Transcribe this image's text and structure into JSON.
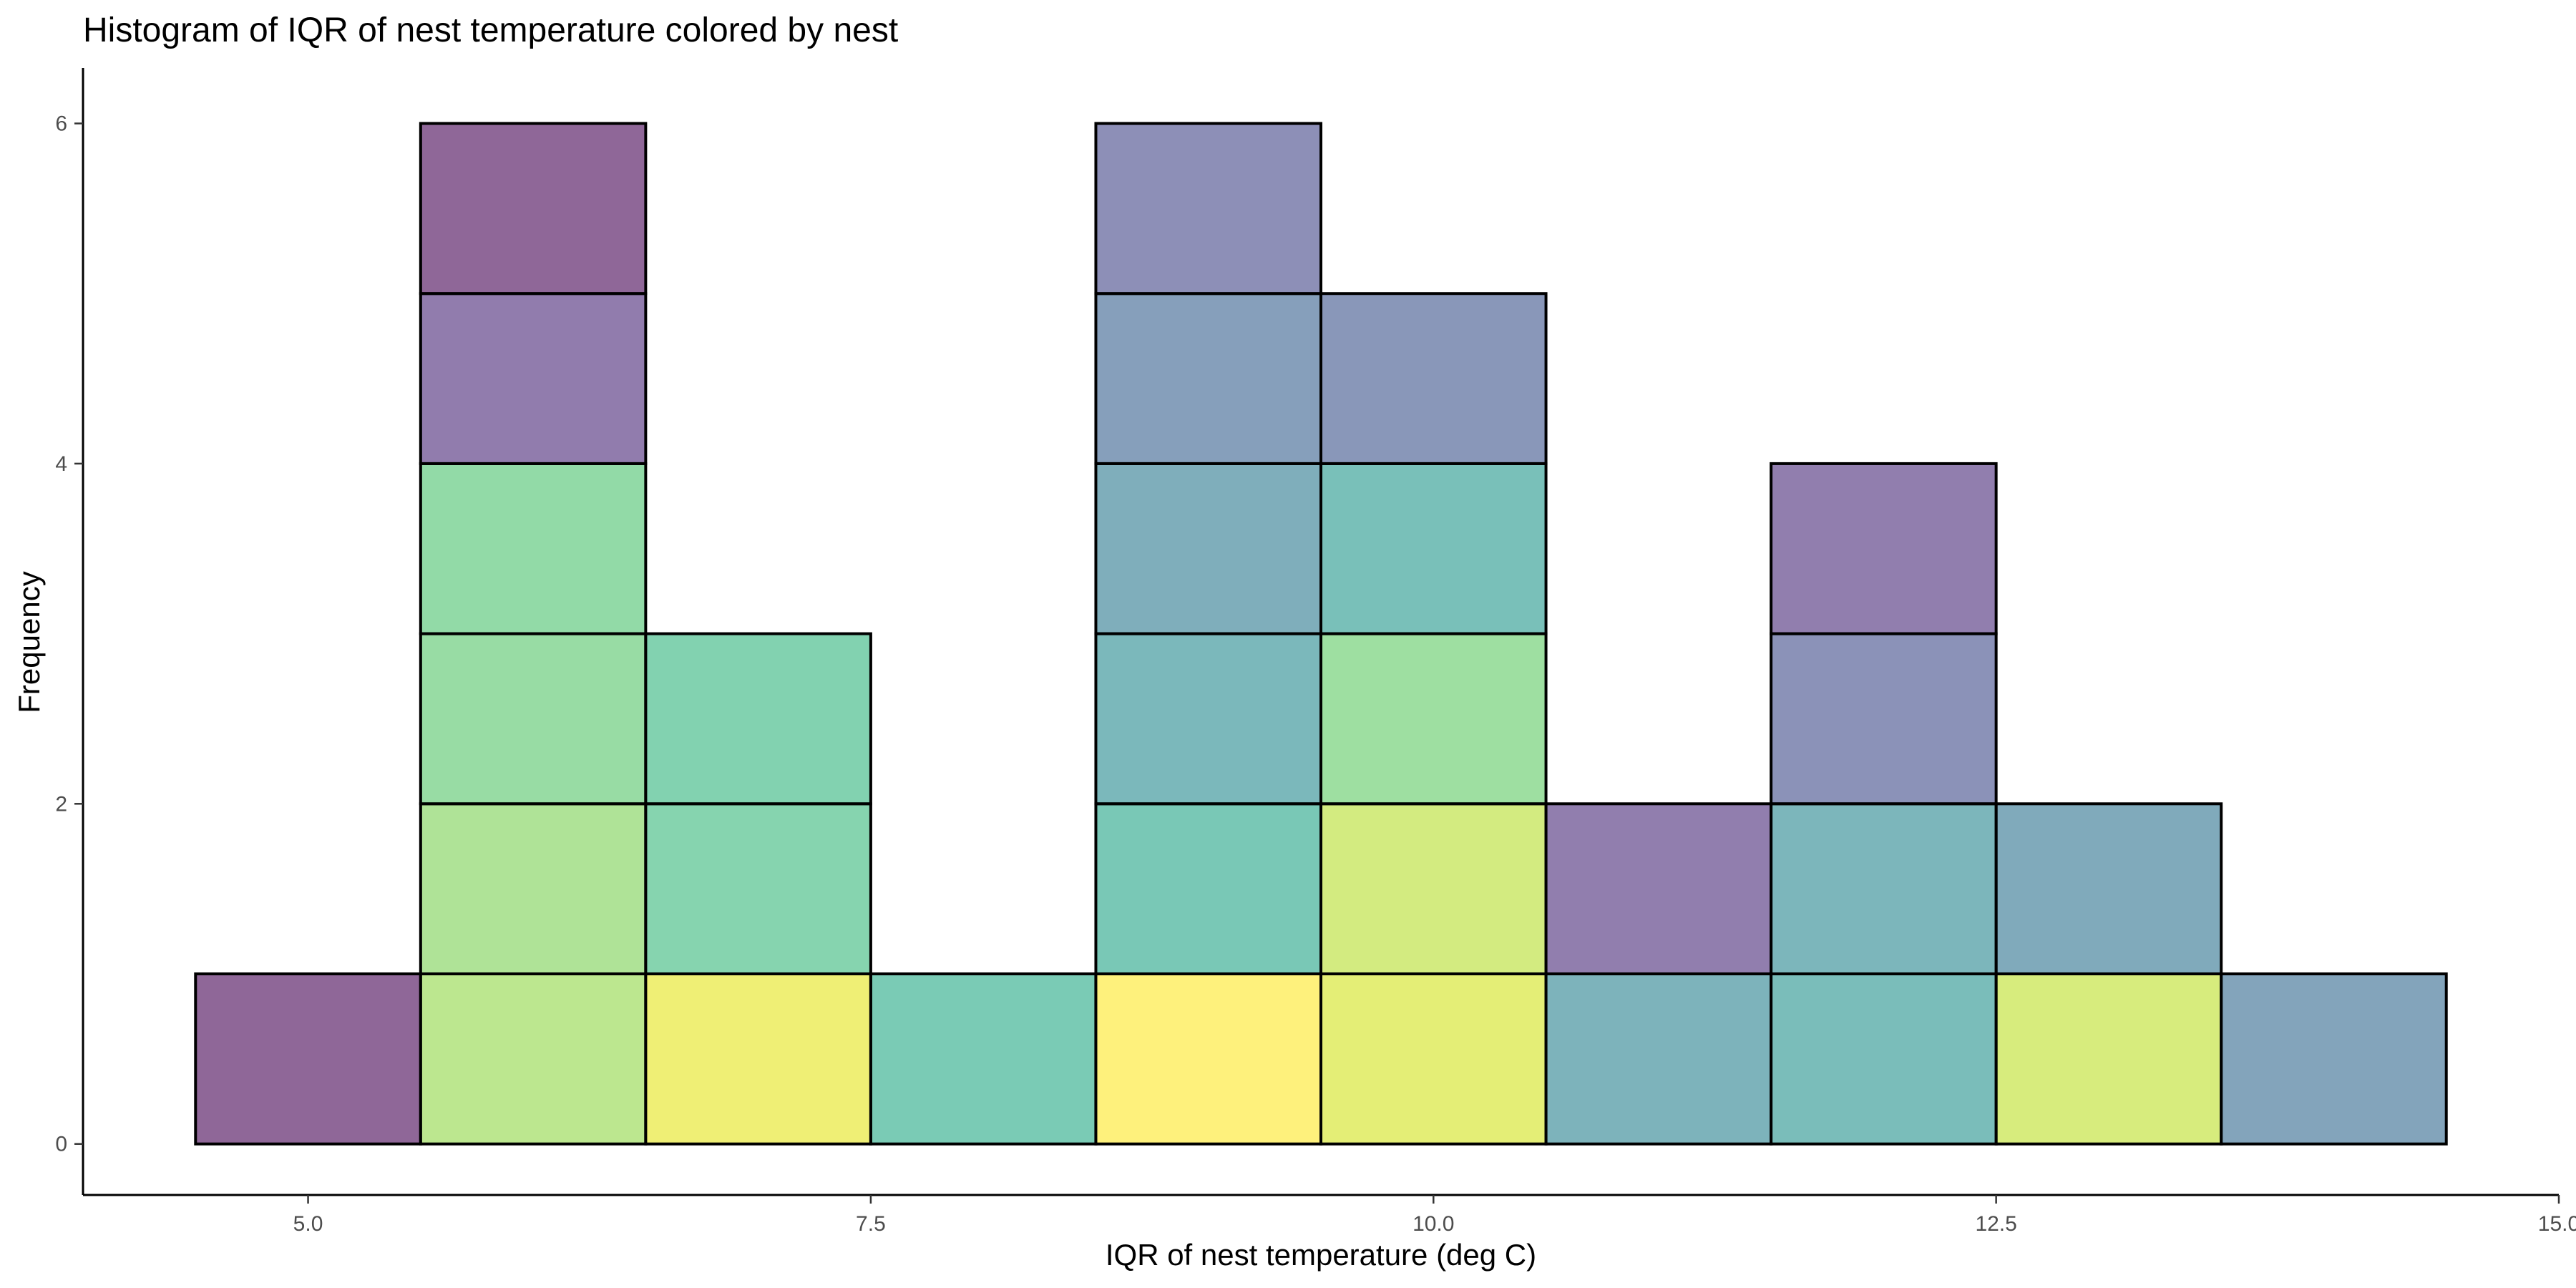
{
  "chart_data": {
    "type": "bar",
    "subtype": "stacked-histogram",
    "title": "Histogram of IQR of nest temperature colored by nest",
    "xlabel": "IQR of nest temperature (deg C)",
    "ylabel": "Frequency",
    "xlim": [
      4.0,
      15.0
    ],
    "ylim": [
      -0.3,
      6.2
    ],
    "x_ticks": [
      {
        "value": 5.0,
        "label": "5.0"
      },
      {
        "value": 7.5,
        "label": "7.5"
      },
      {
        "value": 10.0,
        "label": "10.0"
      },
      {
        "value": 12.5,
        "label": "12.5"
      },
      {
        "value": 15.0,
        "label": "15.0"
      }
    ],
    "y_ticks": [
      {
        "value": 0,
        "label": "0"
      },
      {
        "value": 2,
        "label": "2"
      },
      {
        "value": 4,
        "label": "4"
      },
      {
        "value": 6,
        "label": "6"
      }
    ],
    "grid": false,
    "legend": "none",
    "bin_width": 1.0,
    "bins": [
      {
        "x_min": 4.5,
        "x_max": 5.5,
        "segments": [
          "#440154"
        ]
      },
      {
        "x_min": 5.5,
        "x_max": 6.5,
        "segments": [
          "#8fd744",
          "#7ad151",
          "#54c568",
          "#4ac16d",
          "#482576",
          "#440154"
        ]
      },
      {
        "x_min": 6.5,
        "x_max": 7.5,
        "segments": [
          "#e5e419",
          "#35b779",
          "#2fb47c"
        ]
      },
      {
        "x_min": 7.5,
        "x_max": 8.5,
        "segments": [
          "#22a884"
        ]
      },
      {
        "x_min": 8.5,
        "x_max": 9.5,
        "segments": [
          "#fde725",
          "#20a386",
          "#23888e",
          "#2a788e",
          "#355f8d",
          "#414487"
        ]
      },
      {
        "x_min": 9.5,
        "x_max": 10.5,
        "segments": [
          "#d2e21b",
          "#b5de2b",
          "#5ec962",
          "#1f968b",
          "#3b528b"
        ]
      },
      {
        "x_min": 10.5,
        "x_max": 11.5,
        "segments": [
          "#26818e",
          "#482878"
        ]
      },
      {
        "x_min": 11.5,
        "x_max": 12.5,
        "segments": [
          "#21918c",
          "#25858e",
          "#3e4989",
          "#482878"
        ]
      },
      {
        "x_min": 12.5,
        "x_max": 13.5,
        "segments": [
          "#bddf26",
          "#2c728e"
        ]
      },
      {
        "x_min": 13.5,
        "x_max": 14.5,
        "segments": [
          "#31688e"
        ]
      }
    ]
  }
}
